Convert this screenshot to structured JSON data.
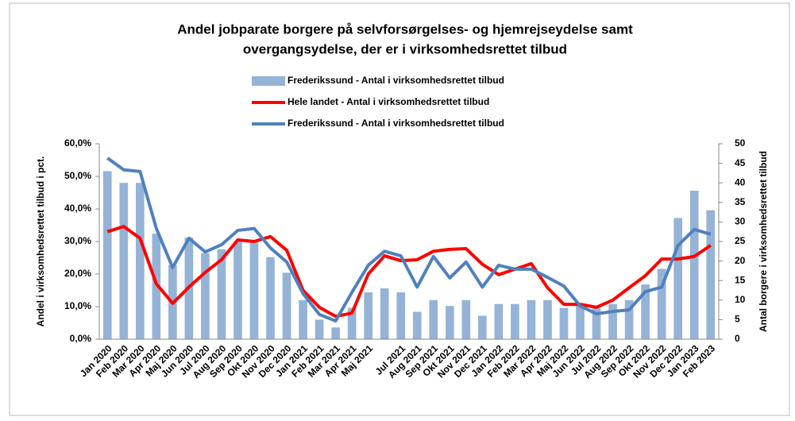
{
  "chart_data": {
    "type": "bar-line",
    "title": [
      "Andel jobparate  borgere på selvforsørgelses- og hjemrejseydelse samt",
      "overgangsydelse, der er i virksomhedsrettet tilbud"
    ],
    "ylabel": "Andel i virksomhedsrettet tilbud i pct.",
    "y2label": "Antal borgere i virksomhedsrettet tilbud",
    "categories": [
      "Jan 2020",
      "Feb 2020",
      "Mar 2020",
      "Apr 2020",
      "Maj 2020",
      "Jun 2020",
      "Jul 2020",
      "Aug 2020",
      "Sep 2020",
      "Okt 2020",
      "Nov 2020",
      "Dec 2020",
      "Jan 2021",
      "Feb 2021",
      "Mar 2021",
      "Apr 2021",
      "Maj 2021",
      null,
      "Jul 2021",
      "Aug 2021",
      "Sep 2021",
      "Okt 2021",
      "Nov 2021",
      "Dec 2021",
      "Jan 2022",
      "Feb 2022",
      "Mar 2022",
      "Apr 2022",
      "Maj 2022",
      "Jun 2022",
      "Jul 2022",
      "Aug 2022",
      "Sep 2022",
      "Okt 2022",
      "Nov 2022",
      "Dec 2022",
      "Jan 2023",
      "Feb 2023"
    ],
    "series": [
      {
        "name": "Frederikssund - Antal i virksomhedsrettet tilbud",
        "type": "bar",
        "axis": "y2",
        "color": "#95b3d7",
        "values": [
          43,
          40,
          40,
          27,
          19,
          26,
          22,
          23,
          25,
          25,
          21,
          17,
          10,
          5,
          3,
          8,
          12,
          13,
          12,
          7,
          10,
          8.5,
          10,
          6,
          9,
          9,
          10,
          10,
          8,
          9,
          8,
          9,
          10,
          14,
          18,
          31,
          38,
          33
        ]
      },
      {
        "name": "Hele landet - Antal i virksomhedsrettet tilbud",
        "type": "line",
        "color": "#ff0000",
        "values": [
          33,
          34.6,
          31,
          17,
          11,
          16,
          20.5,
          24.4,
          30.5,
          30,
          31.5,
          27.3,
          15,
          9.8,
          7,
          8,
          20,
          25.6,
          24.1,
          24.4,
          27,
          27.6,
          27.8,
          23,
          19.8,
          21.5,
          23.2,
          15.8,
          10.7,
          10.7,
          9.8,
          12,
          15.8,
          19.5,
          24.6,
          24.6,
          25.4,
          28.8
        ]
      },
      {
        "name": "Frederikssund - Antal i virksomhedsrettet tilbud",
        "type": "line",
        "color": "#4f81bd",
        "values": [
          55.6,
          52,
          51.5,
          34,
          22,
          31,
          26.8,
          29,
          33.4,
          34,
          28,
          23.7,
          14,
          7.6,
          5.6,
          14.4,
          22.7,
          27,
          25.6,
          16,
          25.4,
          18.8,
          23.7,
          16,
          22.7,
          21.5,
          21.5,
          19,
          16.3,
          10.2,
          7.8,
          8.5,
          9,
          14.6,
          16,
          28.8,
          33.7,
          32.2
        ]
      }
    ],
    "ylim": [
      0,
      60
    ],
    "yticks": [
      {
        "value": 0,
        "label": "0,0%"
      },
      {
        "value": 10,
        "label": "10,0%"
      },
      {
        "value": 20,
        "label": "20,0%"
      },
      {
        "value": 30,
        "label": "30,0%"
      },
      {
        "value": 40,
        "label": "40,0%"
      },
      {
        "value": 50,
        "label": "50,0%"
      },
      {
        "value": 60,
        "label": "60,0%"
      }
    ],
    "y2lim": [
      0,
      50
    ],
    "y2ticks": [
      0,
      5,
      10,
      15,
      20,
      25,
      30,
      35,
      40,
      45,
      50
    ]
  }
}
